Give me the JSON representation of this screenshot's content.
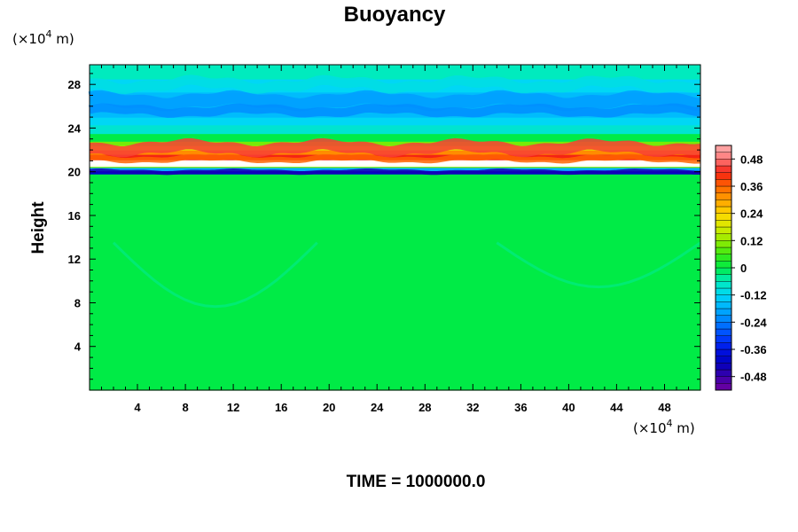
{
  "chart_data": {
    "type": "heatmap",
    "title": "Buoyancy",
    "ylabel": "Height",
    "xlabel": "",
    "x_unit_base": "(×10",
    "x_unit_exp": "4",
    "x_unit_tail": " m)",
    "y_unit_base": "(×10",
    "y_unit_exp": "4",
    "y_unit_tail": " m)",
    "xlim": [
      0,
      51
    ],
    "ylim": [
      0,
      29.8
    ],
    "xticks": [
      4,
      8,
      12,
      16,
      20,
      24,
      28,
      32,
      36,
      40,
      44,
      48
    ],
    "xtick_labels": [
      "4",
      "8",
      "12",
      "16",
      "20",
      "24",
      "28",
      "32",
      "36",
      "40",
      "44",
      "48"
    ],
    "yticks": [
      4,
      8,
      12,
      16,
      20,
      24,
      28
    ],
    "ytick_labels": [
      "4",
      "8",
      "12",
      "16",
      "20",
      "24",
      "28"
    ],
    "colorbar": {
      "range": [
        -0.54,
        0.54
      ],
      "ticks": [
        0.48,
        0.36,
        0.24,
        0.12,
        0,
        -0.12,
        -0.24,
        -0.36,
        -0.48
      ],
      "tick_labels": [
        "0.48",
        "0.36",
        "0.24",
        "0.12",
        "0",
        "-0.12",
        "-0.24",
        "-0.36",
        "-0.48"
      ]
    },
    "field_bands": [
      {
        "y_from": 0,
        "y_to": 19.8,
        "value": 0
      },
      {
        "y_from": 19.8,
        "y_to": 20.1,
        "value": -0.4
      },
      {
        "y_from": 20.1,
        "y_to": 20.4,
        "value": -0.18
      },
      {
        "y_from": 20.4,
        "y_to": 20.6,
        "value": 0.1
      },
      {
        "y_from": 20.6,
        "y_to": 21.1,
        "value": 0.6
      },
      {
        "y_from": 21.1,
        "y_to": 21.6,
        "value": 0.42
      },
      {
        "y_from": 21.6,
        "y_to": 22.0,
        "value": 0.32
      },
      {
        "y_from": 22.0,
        "y_to": 22.4,
        "value": 0.2
      },
      {
        "y_from": 22.4,
        "y_to": 22.8,
        "value": 0.1
      },
      {
        "y_from": 22.8,
        "y_to": 23.5,
        "value": 0
      },
      {
        "y_from": 23.5,
        "y_to": 24.3,
        "value": -0.08
      },
      {
        "y_from": 24.3,
        "y_to": 25.0,
        "value": -0.12
      },
      {
        "y_from": 25.0,
        "y_to": 27.3,
        "value": -0.16
      },
      {
        "y_from": 27.3,
        "y_to": 28.5,
        "value": -0.12
      },
      {
        "y_from": 28.5,
        "y_to": 29.8,
        "value": -0.06
      }
    ],
    "time_label": "TIME = 1000000.0"
  }
}
